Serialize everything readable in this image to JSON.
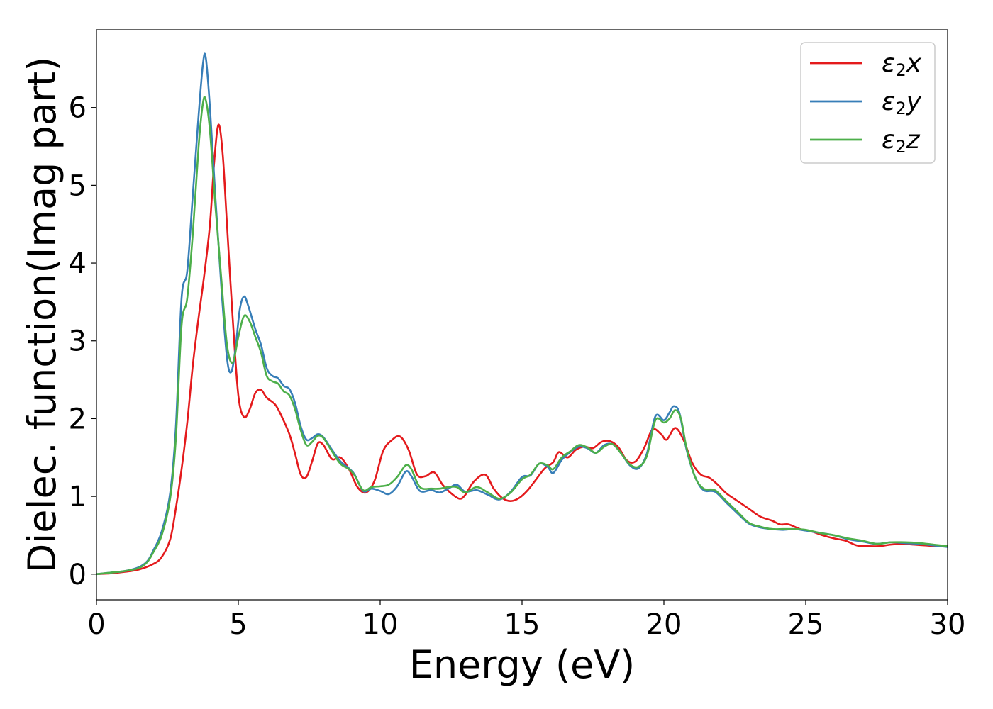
{
  "chart_data": {
    "type": "line",
    "title": "",
    "xlabel": "Energy (eV)",
    "ylabel": "Dielec. function(Imag part)",
    "xlim": [
      0,
      30
    ],
    "ylim": [
      -0.33,
      7.0
    ],
    "xticks": [
      "0",
      "5",
      "10",
      "15",
      "20",
      "25",
      "30"
    ],
    "yticks": [
      "0",
      "1",
      "2",
      "3",
      "4",
      "5",
      "6"
    ],
    "grid": false,
    "legend_position": "top-right",
    "series": [
      {
        "name": "ε2x",
        "legend_main": "ε",
        "legend_sub": "2",
        "legend_tail": "x",
        "color": "#e41a1c",
        "points": [
          [
            0,
            0.0
          ],
          [
            0.5,
            0.01
          ],
          [
            1.0,
            0.03
          ],
          [
            1.5,
            0.06
          ],
          [
            2.0,
            0.13
          ],
          [
            2.3,
            0.22
          ],
          [
            2.6,
            0.45
          ],
          [
            2.8,
            0.85
          ],
          [
            3.0,
            1.35
          ],
          [
            3.2,
            1.95
          ],
          [
            3.4,
            2.7
          ],
          [
            3.6,
            3.3
          ],
          [
            3.8,
            3.85
          ],
          [
            4.0,
            4.5
          ],
          [
            4.15,
            5.3
          ],
          [
            4.3,
            5.78
          ],
          [
            4.45,
            5.4
          ],
          [
            4.6,
            4.5
          ],
          [
            4.8,
            3.3
          ],
          [
            5.0,
            2.3
          ],
          [
            5.2,
            2.02
          ],
          [
            5.4,
            2.12
          ],
          [
            5.6,
            2.33
          ],
          [
            5.8,
            2.37
          ],
          [
            6.0,
            2.27
          ],
          [
            6.3,
            2.18
          ],
          [
            6.5,
            2.05
          ],
          [
            6.8,
            1.8
          ],
          [
            7.0,
            1.55
          ],
          [
            7.2,
            1.28
          ],
          [
            7.4,
            1.25
          ],
          [
            7.6,
            1.45
          ],
          [
            7.8,
            1.68
          ],
          [
            8.0,
            1.66
          ],
          [
            8.3,
            1.48
          ],
          [
            8.6,
            1.5
          ],
          [
            8.9,
            1.35
          ],
          [
            9.2,
            1.12
          ],
          [
            9.5,
            1.05
          ],
          [
            9.8,
            1.2
          ],
          [
            10.1,
            1.58
          ],
          [
            10.4,
            1.72
          ],
          [
            10.7,
            1.77
          ],
          [
            11.0,
            1.6
          ],
          [
            11.3,
            1.28
          ],
          [
            11.6,
            1.26
          ],
          [
            11.9,
            1.31
          ],
          [
            12.2,
            1.15
          ],
          [
            12.5,
            1.04
          ],
          [
            12.8,
            0.97
          ],
          [
            13.0,
            1.02
          ],
          [
            13.3,
            1.19
          ],
          [
            13.7,
            1.28
          ],
          [
            14.0,
            1.1
          ],
          [
            14.3,
            0.98
          ],
          [
            14.6,
            0.94
          ],
          [
            14.9,
            0.98
          ],
          [
            15.2,
            1.08
          ],
          [
            15.5,
            1.22
          ],
          [
            15.8,
            1.36
          ],
          [
            16.1,
            1.44
          ],
          [
            16.3,
            1.57
          ],
          [
            16.6,
            1.5
          ],
          [
            16.9,
            1.6
          ],
          [
            17.2,
            1.64
          ],
          [
            17.5,
            1.62
          ],
          [
            17.8,
            1.7
          ],
          [
            18.1,
            1.71
          ],
          [
            18.4,
            1.63
          ],
          [
            18.7,
            1.46
          ],
          [
            19.0,
            1.45
          ],
          [
            19.3,
            1.62
          ],
          [
            19.6,
            1.86
          ],
          [
            19.9,
            1.8
          ],
          [
            20.1,
            1.73
          ],
          [
            20.4,
            1.88
          ],
          [
            20.7,
            1.72
          ],
          [
            21.0,
            1.43
          ],
          [
            21.3,
            1.28
          ],
          [
            21.6,
            1.24
          ],
          [
            21.9,
            1.15
          ],
          [
            22.2,
            1.04
          ],
          [
            22.6,
            0.94
          ],
          [
            23.0,
            0.84
          ],
          [
            23.4,
            0.74
          ],
          [
            23.8,
            0.69
          ],
          [
            24.1,
            0.64
          ],
          [
            24.4,
            0.64
          ],
          [
            24.8,
            0.58
          ],
          [
            25.2,
            0.55
          ],
          [
            25.6,
            0.5
          ],
          [
            26.0,
            0.46
          ],
          [
            26.4,
            0.43
          ],
          [
            26.8,
            0.37
          ],
          [
            27.2,
            0.36
          ],
          [
            27.6,
            0.36
          ],
          [
            28.0,
            0.38
          ],
          [
            28.4,
            0.39
          ],
          [
            28.8,
            0.38
          ],
          [
            29.2,
            0.37
          ],
          [
            29.6,
            0.36
          ],
          [
            30.0,
            0.36
          ]
        ]
      },
      {
        "name": "ε2y",
        "legend_main": "ε",
        "legend_sub": "2",
        "legend_tail": "y",
        "color": "#377eb8",
        "points": [
          [
            0,
            0.0
          ],
          [
            0.5,
            0.02
          ],
          [
            1.0,
            0.04
          ],
          [
            1.5,
            0.09
          ],
          [
            1.8,
            0.17
          ],
          [
            2.0,
            0.3
          ],
          [
            2.3,
            0.55
          ],
          [
            2.6,
            1.05
          ],
          [
            2.8,
            1.9
          ],
          [
            3.0,
            3.55
          ],
          [
            3.2,
            3.9
          ],
          [
            3.4,
            4.9
          ],
          [
            3.6,
            5.9
          ],
          [
            3.75,
            6.55
          ],
          [
            3.85,
            6.65
          ],
          [
            4.0,
            6.0
          ],
          [
            4.2,
            4.8
          ],
          [
            4.4,
            3.7
          ],
          [
            4.6,
            2.78
          ],
          [
            4.75,
            2.6
          ],
          [
            4.9,
            2.9
          ],
          [
            5.05,
            3.4
          ],
          [
            5.2,
            3.57
          ],
          [
            5.35,
            3.45
          ],
          [
            5.6,
            3.15
          ],
          [
            5.8,
            2.95
          ],
          [
            6.0,
            2.65
          ],
          [
            6.2,
            2.55
          ],
          [
            6.4,
            2.52
          ],
          [
            6.6,
            2.42
          ],
          [
            6.8,
            2.38
          ],
          [
            7.0,
            2.2
          ],
          [
            7.2,
            1.9
          ],
          [
            7.4,
            1.73
          ],
          [
            7.6,
            1.75
          ],
          [
            7.8,
            1.8
          ],
          [
            8.0,
            1.76
          ],
          [
            8.3,
            1.6
          ],
          [
            8.6,
            1.45
          ],
          [
            8.9,
            1.36
          ],
          [
            9.1,
            1.28
          ],
          [
            9.4,
            1.07
          ],
          [
            9.7,
            1.1
          ],
          [
            10.0,
            1.07
          ],
          [
            10.3,
            1.03
          ],
          [
            10.6,
            1.13
          ],
          [
            10.9,
            1.32
          ],
          [
            11.1,
            1.26
          ],
          [
            11.4,
            1.07
          ],
          [
            11.8,
            1.08
          ],
          [
            12.1,
            1.05
          ],
          [
            12.4,
            1.1
          ],
          [
            12.7,
            1.15
          ],
          [
            13.0,
            1.06
          ],
          [
            13.4,
            1.08
          ],
          [
            13.8,
            1.02
          ],
          [
            14.2,
            0.96
          ],
          [
            14.6,
            1.06
          ],
          [
            15.0,
            1.25
          ],
          [
            15.3,
            1.27
          ],
          [
            15.6,
            1.42
          ],
          [
            15.9,
            1.38
          ],
          [
            16.1,
            1.3
          ],
          [
            16.4,
            1.47
          ],
          [
            16.7,
            1.57
          ],
          [
            17.0,
            1.64
          ],
          [
            17.3,
            1.62
          ],
          [
            17.6,
            1.56
          ],
          [
            17.9,
            1.66
          ],
          [
            18.2,
            1.67
          ],
          [
            18.5,
            1.55
          ],
          [
            18.8,
            1.4
          ],
          [
            19.1,
            1.36
          ],
          [
            19.4,
            1.55
          ],
          [
            19.7,
            2.03
          ],
          [
            20.0,
            1.98
          ],
          [
            20.2,
            2.08
          ],
          [
            20.35,
            2.16
          ],
          [
            20.55,
            2.07
          ],
          [
            20.8,
            1.6
          ],
          [
            21.1,
            1.25
          ],
          [
            21.4,
            1.08
          ],
          [
            21.8,
            1.06
          ],
          [
            22.2,
            0.92
          ],
          [
            22.6,
            0.78
          ],
          [
            23.0,
            0.65
          ],
          [
            23.4,
            0.6
          ],
          [
            23.8,
            0.58
          ],
          [
            24.2,
            0.57
          ],
          [
            24.6,
            0.58
          ],
          [
            25.0,
            0.56
          ],
          [
            25.5,
            0.53
          ],
          [
            26.0,
            0.5
          ],
          [
            26.5,
            0.45
          ],
          [
            27.0,
            0.42
          ],
          [
            27.5,
            0.39
          ],
          [
            28.0,
            0.41
          ],
          [
            28.5,
            0.4
          ],
          [
            29.0,
            0.39
          ],
          [
            29.5,
            0.37
          ],
          [
            30.0,
            0.35
          ]
        ]
      },
      {
        "name": "ε2z",
        "legend_main": "ε",
        "legend_sub": "2",
        "legend_tail": "z",
        "color": "#4daf4a",
        "points": [
          [
            0,
            0.0
          ],
          [
            0.5,
            0.02
          ],
          [
            1.0,
            0.04
          ],
          [
            1.5,
            0.08
          ],
          [
            1.8,
            0.16
          ],
          [
            2.0,
            0.28
          ],
          [
            2.3,
            0.5
          ],
          [
            2.6,
            0.98
          ],
          [
            2.8,
            1.75
          ],
          [
            3.0,
            3.2
          ],
          [
            3.2,
            3.55
          ],
          [
            3.4,
            4.4
          ],
          [
            3.6,
            5.5
          ],
          [
            3.75,
            6.05
          ],
          [
            3.85,
            6.1
          ],
          [
            4.0,
            5.7
          ],
          [
            4.2,
            4.7
          ],
          [
            4.4,
            3.8
          ],
          [
            4.6,
            2.95
          ],
          [
            4.8,
            2.72
          ],
          [
            5.0,
            3.05
          ],
          [
            5.2,
            3.32
          ],
          [
            5.4,
            3.25
          ],
          [
            5.6,
            3.05
          ],
          [
            5.8,
            2.85
          ],
          [
            6.0,
            2.55
          ],
          [
            6.2,
            2.48
          ],
          [
            6.4,
            2.45
          ],
          [
            6.6,
            2.35
          ],
          [
            6.8,
            2.3
          ],
          [
            7.0,
            2.12
          ],
          [
            7.2,
            1.85
          ],
          [
            7.4,
            1.66
          ],
          [
            7.6,
            1.7
          ],
          [
            7.8,
            1.78
          ],
          [
            8.0,
            1.75
          ],
          [
            8.3,
            1.58
          ],
          [
            8.6,
            1.42
          ],
          [
            8.9,
            1.35
          ],
          [
            9.1,
            1.27
          ],
          [
            9.4,
            1.08
          ],
          [
            9.7,
            1.12
          ],
          [
            10.0,
            1.13
          ],
          [
            10.3,
            1.15
          ],
          [
            10.6,
            1.25
          ],
          [
            10.9,
            1.4
          ],
          [
            11.1,
            1.35
          ],
          [
            11.4,
            1.12
          ],
          [
            11.8,
            1.1
          ],
          [
            12.1,
            1.1
          ],
          [
            12.4,
            1.12
          ],
          [
            12.7,
            1.12
          ],
          [
            13.0,
            1.05
          ],
          [
            13.4,
            1.12
          ],
          [
            13.8,
            1.05
          ],
          [
            14.2,
            0.97
          ],
          [
            14.6,
            1.05
          ],
          [
            15.0,
            1.22
          ],
          [
            15.3,
            1.28
          ],
          [
            15.6,
            1.42
          ],
          [
            15.9,
            1.4
          ],
          [
            16.1,
            1.35
          ],
          [
            16.4,
            1.5
          ],
          [
            16.7,
            1.58
          ],
          [
            17.0,
            1.66
          ],
          [
            17.3,
            1.63
          ],
          [
            17.6,
            1.56
          ],
          [
            17.9,
            1.64
          ],
          [
            18.2,
            1.67
          ],
          [
            18.5,
            1.55
          ],
          [
            18.8,
            1.41
          ],
          [
            19.1,
            1.38
          ],
          [
            19.4,
            1.52
          ],
          [
            19.7,
            1.98
          ],
          [
            20.0,
            1.95
          ],
          [
            20.2,
            2.0
          ],
          [
            20.4,
            2.11
          ],
          [
            20.6,
            2.0
          ],
          [
            20.8,
            1.62
          ],
          [
            21.1,
            1.25
          ],
          [
            21.4,
            1.1
          ],
          [
            21.8,
            1.08
          ],
          [
            22.2,
            0.94
          ],
          [
            22.6,
            0.8
          ],
          [
            23.0,
            0.66
          ],
          [
            23.4,
            0.61
          ],
          [
            23.8,
            0.58
          ],
          [
            24.2,
            0.58
          ],
          [
            24.6,
            0.58
          ],
          [
            25.0,
            0.57
          ],
          [
            25.5,
            0.53
          ],
          [
            26.0,
            0.5
          ],
          [
            26.5,
            0.46
          ],
          [
            27.0,
            0.43
          ],
          [
            27.5,
            0.39
          ],
          [
            28.0,
            0.41
          ],
          [
            28.5,
            0.41
          ],
          [
            29.0,
            0.4
          ],
          [
            29.5,
            0.38
          ],
          [
            30.0,
            0.36
          ]
        ]
      }
    ]
  }
}
